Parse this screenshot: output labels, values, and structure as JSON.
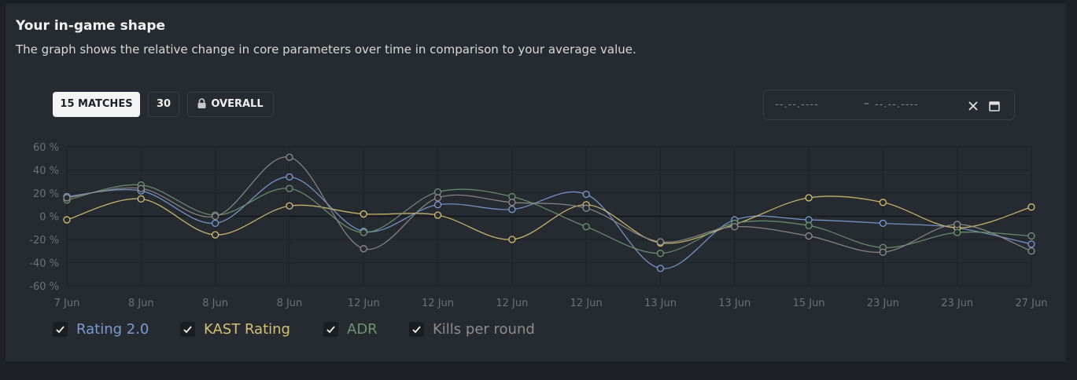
{
  "header": {
    "title": "Your in-game shape",
    "subtitle": "The graph shows the relative change in core parameters over time in comparison to your average value."
  },
  "filters": {
    "matches_15": "15 MATCHES",
    "matches_30": "30",
    "overall": "OVERALL",
    "active": "15 MATCHES",
    "date_from_placeholder": "--.--.----",
    "date_to_placeholder": "--.--.----",
    "date_separator": "–"
  },
  "chart_data": {
    "type": "line",
    "ylim": [
      -60,
      60
    ],
    "yticks": [
      60,
      40,
      20,
      0,
      -20,
      -40,
      -60
    ],
    "ytick_labels": [
      "60 %",
      "40 %",
      "20 %",
      "0 %",
      "-20 %",
      "-40 %",
      "-60 %"
    ],
    "x": [
      "7 Jun",
      "8 Jun",
      "8 Jun",
      "8 Jun",
      "12 Jun",
      "12 Jun",
      "12 Jun",
      "12 Jun",
      "13 Jun",
      "13 Jun",
      "15 Jun",
      "23 Jun",
      "23 Jun",
      "27 Jun"
    ],
    "grid": true,
    "legend_position": "bottom-left",
    "series": [
      {
        "name": "Rating 2.0",
        "color": "#7b9bd1",
        "values": [
          17,
          22,
          -6,
          34,
          -13,
          10,
          6,
          19,
          -45,
          -3,
          -3,
          -6,
          -10,
          -24
        ]
      },
      {
        "name": "KAST Rating",
        "color": "#d4c070",
        "values": [
          -3,
          15,
          -16,
          9,
          2,
          1,
          -20,
          10,
          -23,
          -7,
          16,
          12,
          -10,
          8
        ]
      },
      {
        "name": "ADR",
        "color": "#6b9470",
        "values": [
          14,
          27,
          1,
          24,
          -14,
          21,
          17,
          -9,
          -32,
          -6,
          -8,
          -27,
          -14,
          -17
        ]
      },
      {
        "name": "Kills per round",
        "color": "#8e8c8c",
        "values": [
          16,
          24,
          0,
          51,
          -28,
          16,
          12,
          7,
          -22,
          -9,
          -17,
          -31,
          -7,
          -30
        ]
      }
    ]
  }
}
